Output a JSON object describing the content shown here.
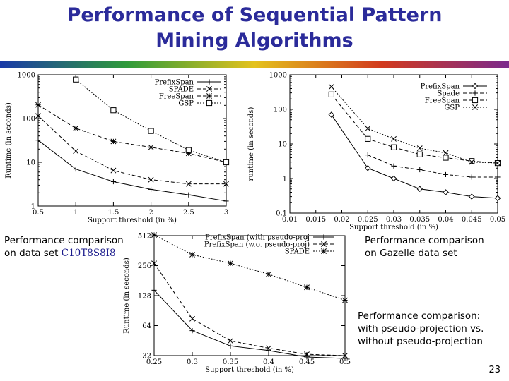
{
  "slide": {
    "title_line1": "Performance of Sequential Pattern",
    "title_line2": "Mining Algorithms",
    "slide_number": "23",
    "accent_colors": [
      "#1a3aa8",
      "#2f9b3a",
      "#e4c21c",
      "#d23a1e",
      "#7b2a8c"
    ],
    "captions": {
      "c10": {
        "line1": "Performance comparison",
        "line2_prefix": "on data set ",
        "line2_dataset": "C10T8S8I8"
      },
      "gazelle": {
        "line1": "Performance comparison",
        "line2": "on Gazelle data set"
      },
      "pseudo": {
        "line1": "Performance comparison:",
        "line2": "with pseudo-projection vs.",
        "line3": "without pseudo-projection"
      }
    }
  },
  "chart_data": [
    {
      "type": "line",
      "xlabel": "Support threshold (in %)",
      "ylabel": "Runtime (in seconds)",
      "yscale": "log",
      "xlim": [
        0.5,
        3
      ],
      "ylim": [
        1,
        1000
      ],
      "xticks": [
        "0.5",
        "1",
        "1.5",
        "2",
        "2.5",
        "3"
      ],
      "yticks": [
        "1",
        "10",
        "100",
        "1000"
      ],
      "legend_position": "top-right",
      "x": [
        0.5,
        1,
        1.5,
        2,
        2.5,
        3
      ],
      "series": [
        {
          "name": "PrefixSpan",
          "marker": "plus",
          "dash": "solid",
          "values": [
            32,
            7,
            3.6,
            2.4,
            1.8,
            1.3
          ]
        },
        {
          "name": "SPADE",
          "marker": "cross",
          "dash": "dash",
          "values": [
            115,
            18,
            6.5,
            4,
            3.2,
            3.2
          ]
        },
        {
          "name": "FreeSpan",
          "marker": "star",
          "dash": "dash",
          "values": [
            205,
            60,
            30,
            22,
            16,
            10
          ]
        },
        {
          "name": "GSP",
          "marker": "square",
          "dash": "dot",
          "values": [
            null,
            780,
            155,
            52,
            19,
            10
          ]
        }
      ]
    },
    {
      "type": "line",
      "xlabel": "Support threshold (in %)",
      "ylabel": "runtime (in seconds)",
      "yscale": "log",
      "xlim": [
        0.01,
        0.05
      ],
      "ylim": [
        0.1,
        1000
      ],
      "xticks": [
        "0.01",
        "0.015",
        "0.02",
        "0.025",
        "0.03",
        "0.035",
        "0.04",
        "0.045",
        "0.05"
      ],
      "yticks": [
        "0.1",
        "1",
        "10",
        "100",
        "1000"
      ],
      "legend_position": "top-right",
      "x": [
        0.018,
        0.025,
        0.03,
        0.035,
        0.04,
        0.045,
        0.05
      ],
      "series": [
        {
          "name": "PrefixSpan",
          "marker": "diamond",
          "dash": "solid",
          "values": [
            70,
            2,
            1,
            0.5,
            0.4,
            0.3,
            0.27
          ]
        },
        {
          "name": "Spade",
          "marker": "plus",
          "dash": "dash",
          "values": [
            null,
            4.8,
            2.3,
            1.8,
            1.3,
            1.1,
            1.1
          ]
        },
        {
          "name": "FreeSpan",
          "marker": "square",
          "dash": "dash",
          "values": [
            270,
            14,
            8,
            5,
            4,
            3.2,
            2.8
          ]
        },
        {
          "name": "GSP",
          "marker": "cross",
          "dash": "dot",
          "values": [
            450,
            28,
            14,
            7.5,
            5.5,
            3,
            2.8
          ]
        }
      ]
    },
    {
      "type": "line",
      "xlabel": "Support threshold (in %)",
      "ylabel": "Runtime (in seconds)",
      "yscale": "log",
      "xlim": [
        0.25,
        0.5
      ],
      "ylim": [
        32,
        512
      ],
      "xticks": [
        "0.25",
        "0.3",
        "0.35",
        "0.4",
        "0.45",
        "0.5"
      ],
      "yticks": [
        "32",
        "64",
        "128",
        "256",
        "512"
      ],
      "legend_position": "top-right",
      "x": [
        0.25,
        0.3,
        0.35,
        0.4,
        0.45,
        0.5
      ],
      "series": [
        {
          "name": "PrefixSpan (with pseudo-proj",
          "marker": "plus",
          "dash": "solid",
          "values": [
            145,
            57,
            40,
            36,
            31,
            30
          ]
        },
        {
          "name": "PrefixSpan (w.o. pseudo-proj)",
          "marker": "cross",
          "dash": "dash",
          "values": [
            270,
            75,
            45,
            38,
            33,
            32
          ]
        },
        {
          "name": "SPADE",
          "marker": "star",
          "dash": "dot",
          "values": [
            520,
            330,
            270,
            210,
            155,
            115
          ]
        }
      ]
    }
  ]
}
